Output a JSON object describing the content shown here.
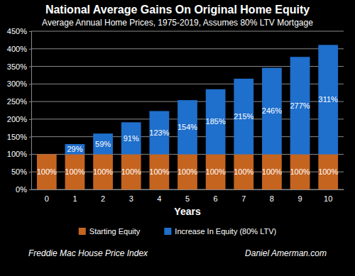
{
  "chart_data": {
    "type": "bar",
    "title": "National Average Gains On Original Home Equity",
    "subtitle": "Average Annual Home Prices, 1975-2019, Assumes 80% LTV Mortgage",
    "x_label": "Years",
    "categories": [
      "0",
      "1",
      "2",
      "3",
      "4",
      "5",
      "6",
      "7",
      "8",
      "9",
      "10"
    ],
    "series": [
      {
        "name": "Starting Equity",
        "color": "#c5641f",
        "values": [
          100,
          100,
          100,
          100,
          100,
          100,
          100,
          100,
          100,
          100,
          100
        ],
        "value_labels": [
          "100%",
          "100%",
          "100%",
          "100%",
          "100%",
          "100%",
          "100%",
          "100%",
          "100%",
          "100%",
          "100%"
        ]
      },
      {
        "name": "Increase In Equity (80% LTV)",
        "color": "#1f6fcc",
        "values": [
          null,
          29,
          59,
          91,
          123,
          154,
          185,
          215,
          246,
          277,
          311
        ],
        "value_labels": [
          null,
          "29%",
          "59%",
          "91%",
          "123%",
          "154%",
          "185%",
          "215%",
          "246%",
          "277%",
          "311%"
        ]
      }
    ],
    "stacked": true,
    "data_labels": true,
    "ylim": [
      0,
      450
    ],
    "yticks": [
      {
        "value": 0,
        "label": "0%"
      },
      {
        "value": 50,
        "label": "50%"
      },
      {
        "value": 100,
        "label": "100%"
      },
      {
        "value": 150,
        "label": "150%"
      },
      {
        "value": 200,
        "label": "200%"
      },
      {
        "value": 250,
        "label": "250%"
      },
      {
        "value": 300,
        "label": "300%"
      },
      {
        "value": 350,
        "label": "350%"
      },
      {
        "value": 400,
        "label": "400%"
      },
      {
        "value": 450,
        "label": "450%"
      }
    ],
    "grid": true,
    "legend": "bottom",
    "annotations": [
      "Freddie Mac House Price Index",
      "Daniel Amerman.com"
    ]
  }
}
